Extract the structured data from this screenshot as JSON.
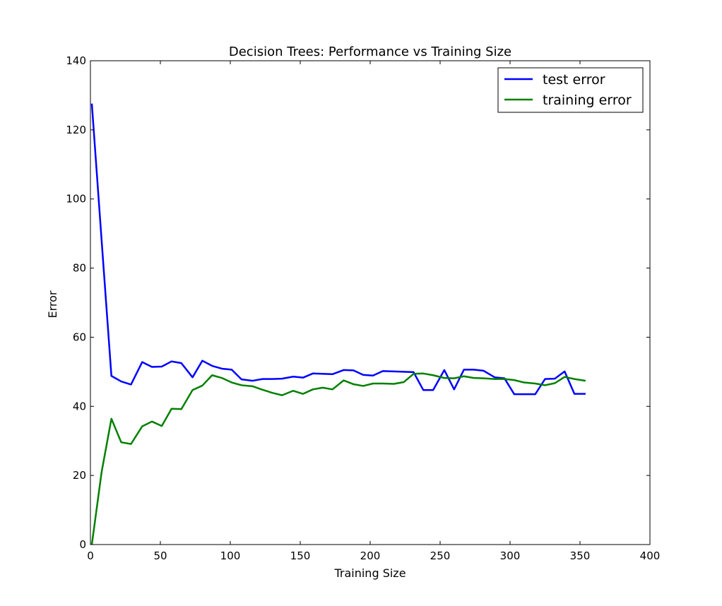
{
  "chart_data": {
    "type": "line",
    "title": "Decision Trees: Performance vs Training Size",
    "xlabel": "Training Size",
    "ylabel": "Error",
    "xlim": [
      0,
      400
    ],
    "ylim": [
      0,
      140
    ],
    "xticks": [
      0,
      50,
      100,
      150,
      200,
      250,
      300,
      350,
      400
    ],
    "yticks": [
      0,
      20,
      40,
      60,
      80,
      100,
      120,
      140
    ],
    "grid": false,
    "legend_position": "top-right",
    "x": [
      1,
      8,
      15,
      22,
      29,
      37,
      44,
      51,
      58,
      65,
      73,
      80,
      87,
      94,
      101,
      108,
      116,
      123,
      130,
      137,
      145,
      152,
      159,
      166,
      173,
      181,
      188,
      195,
      202,
      209,
      217,
      224,
      231,
      238,
      245,
      253,
      260,
      267,
      274,
      281,
      289,
      296,
      303,
      310,
      318,
      325,
      332,
      339,
      346,
      354
    ],
    "series": [
      {
        "name": "test error",
        "color": "#0000ff",
        "values": [
          127.6,
          88.0,
          48.8,
          47.2,
          46.3,
          52.8,
          51.4,
          51.5,
          53.0,
          52.5,
          48.4,
          53.2,
          51.7,
          50.9,
          50.6,
          47.8,
          47.4,
          47.9,
          47.9,
          48.0,
          48.6,
          48.3,
          49.5,
          49.4,
          49.3,
          50.5,
          50.4,
          49.1,
          48.9,
          50.2,
          50.1,
          50.0,
          49.9,
          44.7,
          44.7,
          50.5,
          44.9,
          50.6,
          50.6,
          50.3,
          48.4,
          48.1,
          43.5,
          43.5,
          43.5,
          47.9,
          48.0,
          50.1,
          43.6,
          43.6
        ]
      },
      {
        "name": "training error",
        "color": "#008000",
        "values": [
          0.0,
          21.0,
          36.4,
          29.6,
          29.1,
          34.2,
          35.6,
          34.3,
          39.3,
          39.2,
          44.7,
          46.0,
          49.0,
          48.2,
          46.9,
          46.1,
          45.8,
          44.8,
          43.9,
          43.2,
          44.5,
          43.6,
          44.9,
          45.4,
          44.9,
          47.5,
          46.4,
          45.9,
          46.6,
          46.6,
          46.5,
          47.0,
          49.4,
          49.5,
          49.0,
          48.2,
          48.1,
          48.7,
          48.2,
          48.1,
          47.9,
          47.9,
          47.6,
          46.9,
          46.6,
          46.1,
          46.7,
          48.5,
          47.9,
          47.4
        ]
      }
    ]
  }
}
